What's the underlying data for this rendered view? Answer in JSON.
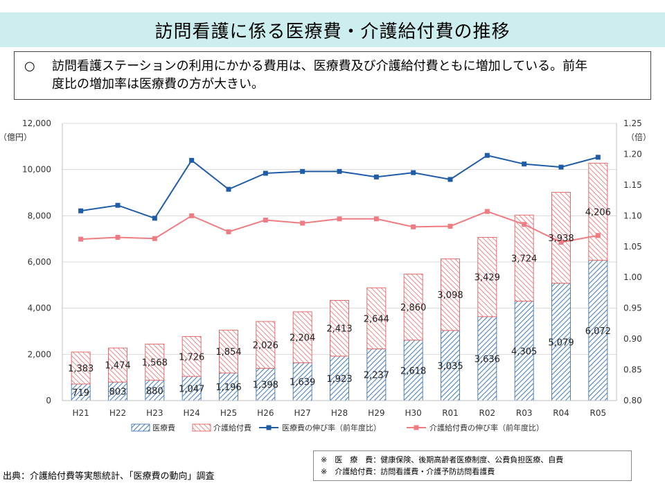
{
  "header": {
    "title": "訪問看護に係る医療費・介護給付費の推移"
  },
  "summary": {
    "bullet": "○",
    "line1": "訪問看護ステーションの利用にかかる費用は、医療費及び介護給付費ともに増加している。前年",
    "line2": "度比の増加率は医療費の方が大きい。"
  },
  "chart_data": {
    "type": "bar",
    "stacked": true,
    "categories": [
      "H21",
      "H22",
      "H23",
      "H24",
      "H25",
      "H26",
      "H27",
      "H28",
      "H29",
      "H30",
      "R01",
      "R02",
      "R03",
      "R04",
      "R05"
    ],
    "y_left": {
      "unit": "（億円）",
      "min": 0,
      "max": 12000,
      "ticks": [
        "0",
        "2,000",
        "4,000",
        "6,000",
        "8,000",
        "10,000",
        "12,000"
      ]
    },
    "y_right": {
      "unit": "（倍）",
      "min": 0.8,
      "max": 1.25,
      "ticks": [
        "0.80",
        "0.85",
        "0.90",
        "0.95",
        "1.00",
        "1.05",
        "1.10",
        "1.15",
        "1.20",
        "1.25"
      ]
    },
    "series": [
      {
        "name": "医療費",
        "kind": "bar",
        "axis": "left",
        "color": "#4f81bd",
        "values": [
          719,
          803,
          880,
          1047,
          1196,
          1398,
          1639,
          1923,
          2237,
          2618,
          3035,
          3636,
          4305,
          5079,
          6072
        ],
        "labels": [
          "719",
          "803",
          "880",
          "1,047",
          "1,196",
          "1,398",
          "1,639",
          "1,923",
          "2,237",
          "2,618",
          "3,035",
          "3,636",
          "4,305",
          "5,079",
          "6,072"
        ]
      },
      {
        "name": "介護給付費",
        "kind": "bar",
        "axis": "left",
        "color": "#e46c6c",
        "values": [
          1383,
          1474,
          1568,
          1726,
          1854,
          2026,
          2204,
          2413,
          2644,
          2860,
          3098,
          3429,
          3724,
          3938,
          4206
        ],
        "labels": [
          "1,383",
          "1,474",
          "1,568",
          "1,726",
          "1,854",
          "2,026",
          "2,204",
          "2,413",
          "2,644",
          "2,860",
          "3,098",
          "3,429",
          "3,724",
          "3,938",
          "4,206"
        ]
      },
      {
        "name": "医療費の伸び率（前年度比）",
        "kind": "line",
        "axis": "right",
        "color": "#1f5ca8",
        "values": [
          1.108,
          1.117,
          1.096,
          1.19,
          1.143,
          1.169,
          1.172,
          1.172,
          1.163,
          1.17,
          1.159,
          1.198,
          1.184,
          1.179,
          1.195
        ]
      },
      {
        "name": "介護給付費の伸び率（前年度比）",
        "kind": "line",
        "axis": "right",
        "color": "#f07c82",
        "values": [
          1.062,
          1.065,
          1.063,
          1.1,
          1.074,
          1.093,
          1.088,
          1.095,
          1.095,
          1.082,
          1.083,
          1.107,
          1.086,
          1.057,
          1.068
        ]
      }
    ],
    "legend_position": "bottom"
  },
  "footer": {
    "source": "出典：介護給付費等実態統計、「医療費の動向」調査",
    "note1": "※　医　療　費：健康保険、後期高齢者医療制度、公費負担医療、自費",
    "note2": "※　介護給付費：訪問看護費・介護予防訪問看護費"
  },
  "colors": {
    "title_bg": "#cdeeee"
  }
}
